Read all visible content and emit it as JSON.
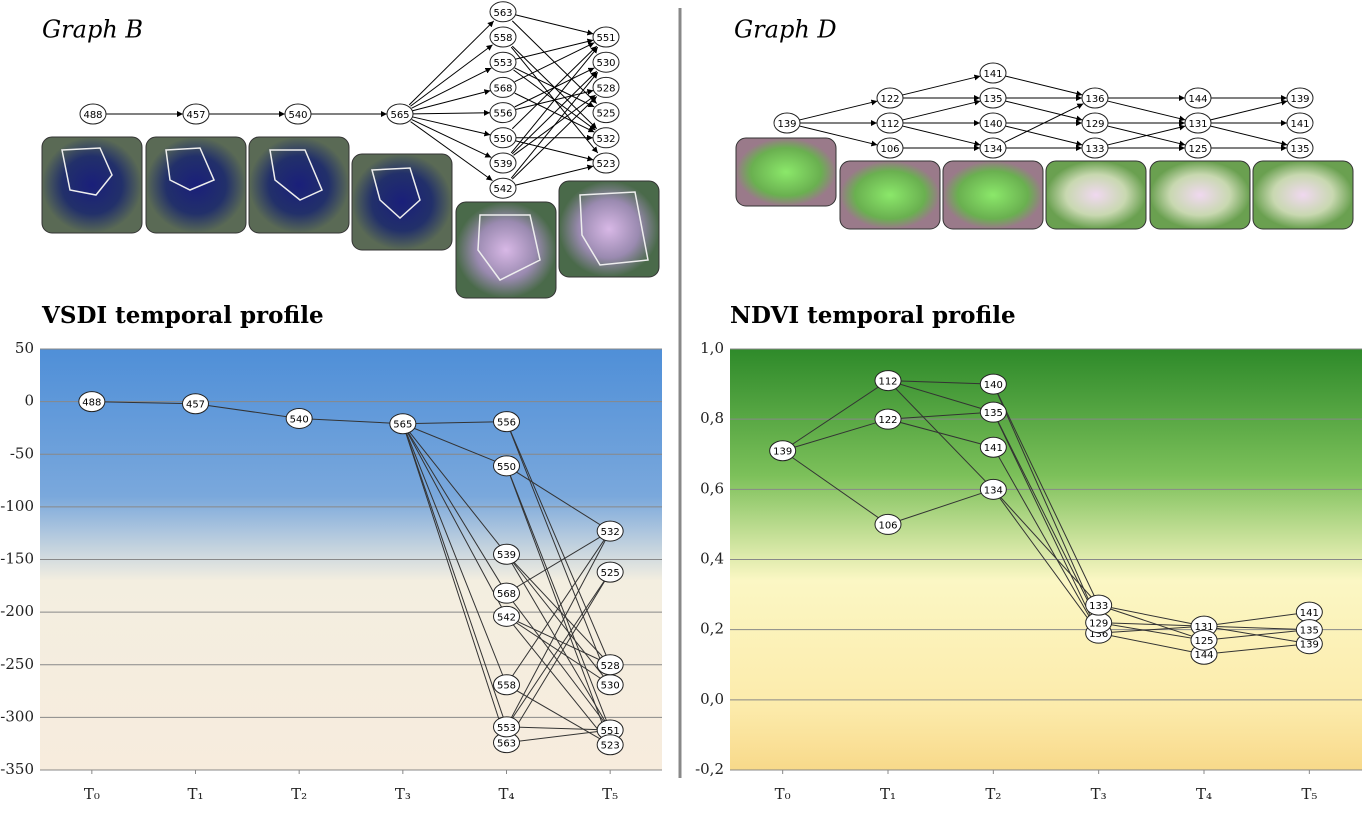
{
  "diagrams": [
    {
      "title": "Graph B"
    },
    {
      "title": "Graph D"
    }
  ],
  "chart_data": [
    {
      "type": "node-profile",
      "title": "VSDI temporal profile",
      "xlim": [
        -0.5,
        5.5
      ],
      "xticks": [
        {
          "value": 0,
          "label": "T₀"
        },
        {
          "value": 1,
          "label": "T₁"
        },
        {
          "value": 2,
          "label": "T₂"
        },
        {
          "value": 3,
          "label": "T₃"
        },
        {
          "value": 4,
          "label": "T₄"
        },
        {
          "value": 5,
          "label": "T₅"
        }
      ],
      "ylim": [
        -350,
        50
      ],
      "yticks": [
        50,
        0,
        -50,
        -100,
        -150,
        -200,
        -250,
        -300,
        -350
      ],
      "grid": true,
      "points": [
        {
          "label": "488",
          "x": 0,
          "y": 0
        },
        {
          "label": "457",
          "x": 1,
          "y": -2
        },
        {
          "label": "540",
          "x": 2,
          "y": -16
        },
        {
          "label": "565",
          "x": 3,
          "y": -21
        },
        {
          "label": "563",
          "x": 4,
          "y": -324
        },
        {
          "label": "558",
          "x": 4,
          "y": -269
        },
        {
          "label": "553",
          "x": 4,
          "y": -309
        },
        {
          "label": "568",
          "x": 4,
          "y": -182
        },
        {
          "label": "556",
          "x": 4,
          "y": -19
        },
        {
          "label": "550",
          "x": 4,
          "y": -61
        },
        {
          "label": "539",
          "x": 4,
          "y": -145
        },
        {
          "label": "542",
          "x": 4,
          "y": -204
        },
        {
          "label": "551",
          "x": 5,
          "y": -312
        },
        {
          "label": "530",
          "x": 5,
          "y": -269
        },
        {
          "label": "528",
          "x": 5,
          "y": -250
        },
        {
          "label": "525",
          "x": 5,
          "y": -162
        },
        {
          "label": "532",
          "x": 5,
          "y": -123
        },
        {
          "label": "523",
          "x": 5,
          "y": -326
        }
      ],
      "edges": [
        [
          0,
          1
        ],
        [
          1,
          2
        ],
        [
          2,
          3
        ],
        [
          3,
          4
        ],
        [
          3,
          5
        ],
        [
          3,
          6
        ],
        [
          3,
          7
        ],
        [
          3,
          8
        ],
        [
          3,
          9
        ],
        [
          3,
          10
        ],
        [
          3,
          11
        ],
        [
          8,
          14
        ],
        [
          8,
          13
        ],
        [
          9,
          16
        ],
        [
          9,
          12
        ],
        [
          9,
          17
        ],
        [
          10,
          14
        ],
        [
          10,
          13
        ],
        [
          10,
          12
        ],
        [
          7,
          16
        ],
        [
          7,
          12
        ],
        [
          11,
          13
        ],
        [
          11,
          14
        ],
        [
          11,
          17
        ],
        [
          5,
          16
        ],
        [
          5,
          17
        ],
        [
          6,
          16
        ],
        [
          6,
          15
        ],
        [
          6,
          12
        ],
        [
          4,
          15
        ],
        [
          4,
          12
        ]
      ]
    },
    {
      "type": "node-profile",
      "title": "NDVI temporal profile",
      "xlim": [
        -0.5,
        5.5
      ],
      "xticks": [
        {
          "value": 0,
          "label": "T₀"
        },
        {
          "value": 1,
          "label": "T₁"
        },
        {
          "value": 2,
          "label": "T₂"
        },
        {
          "value": 3,
          "label": "T₃"
        },
        {
          "value": 4,
          "label": "T₄"
        },
        {
          "value": 5,
          "label": "T₅"
        }
      ],
      "ylim": [
        -0.2,
        1.0
      ],
      "yticks": [
        {
          "value": 1.0,
          "label": "1,0"
        },
        {
          "value": 0.8,
          "label": "0,8"
        },
        {
          "value": 0.6,
          "label": "0,6"
        },
        {
          "value": 0.4,
          "label": "0,4"
        },
        {
          "value": 0.2,
          "label": "0,2"
        },
        {
          "value": 0.0,
          "label": "0,0"
        },
        {
          "value": -0.2,
          "label": "-0,2"
        }
      ],
      "grid": true,
      "points": [
        {
          "label": "139",
          "x": 0,
          "y": 0.71
        },
        {
          "label": "122",
          "x": 1,
          "y": 0.8
        },
        {
          "label": "112",
          "x": 1,
          "y": 0.91
        },
        {
          "label": "106",
          "x": 1,
          "y": 0.5
        },
        {
          "label": "141",
          "x": 2,
          "y": 0.72
        },
        {
          "label": "135",
          "x": 2,
          "y": 0.82
        },
        {
          "label": "140",
          "x": 2,
          "y": 0.9
        },
        {
          "label": "134",
          "x": 2,
          "y": 0.6
        },
        {
          "label": "136",
          "x": 3,
          "y": 0.19
        },
        {
          "label": "129",
          "x": 3,
          "y": 0.22
        },
        {
          "label": "133",
          "x": 3,
          "y": 0.27
        },
        {
          "label": "144",
          "x": 4,
          "y": 0.13
        },
        {
          "label": "131",
          "x": 4,
          "y": 0.21
        },
        {
          "label": "125",
          "x": 4,
          "y": 0.17
        },
        {
          "label": "139",
          "x": 5,
          "y": 0.16
        },
        {
          "label": "141",
          "x": 5,
          "y": 0.25
        },
        {
          "label": "135",
          "x": 5,
          "y": 0.2
        }
      ],
      "edges": [
        [
          0,
          1
        ],
        [
          0,
          2
        ],
        [
          0,
          3
        ],
        [
          1,
          4
        ],
        [
          1,
          5
        ],
        [
          2,
          5
        ],
        [
          2,
          6
        ],
        [
          2,
          7
        ],
        [
          3,
          7
        ],
        [
          4,
          8
        ],
        [
          5,
          8
        ],
        [
          5,
          9
        ],
        [
          6,
          9
        ],
        [
          6,
          10
        ],
        [
          7,
          10
        ],
        [
          7,
          8
        ],
        [
          8,
          11
        ],
        [
          8,
          12
        ],
        [
          9,
          12
        ],
        [
          9,
          13
        ],
        [
          10,
          13
        ],
        [
          10,
          12
        ],
        [
          11,
          14
        ],
        [
          12,
          14
        ],
        [
          12,
          15
        ],
        [
          12,
          16
        ],
        [
          13,
          16
        ]
      ]
    }
  ]
}
